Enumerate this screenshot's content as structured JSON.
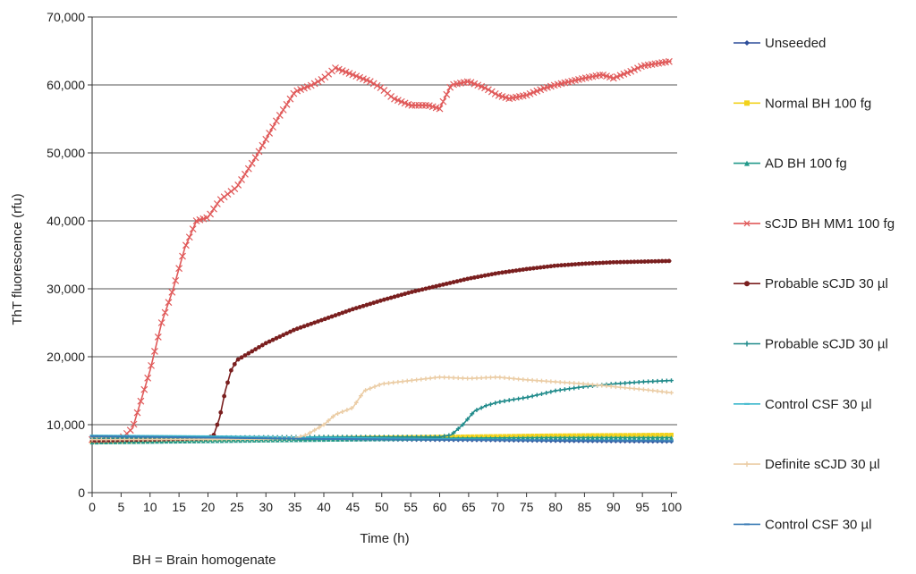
{
  "chart_data": {
    "type": "line",
    "xlabel": "Time (h)",
    "ylabel": "ThT fluorescence (rfu)",
    "xlim": [
      0,
      101
    ],
    "ylim": [
      0,
      70000
    ],
    "x_ticks": [
      "0",
      "5",
      "10",
      "15",
      "20",
      "25",
      "30",
      "35",
      "40",
      "45",
      "50",
      "55",
      "60",
      "65",
      "70",
      "75",
      "80",
      "85",
      "90",
      "95",
      "100"
    ],
    "y_ticks": [
      "0",
      "10,000",
      "20,000",
      "30,000",
      "40,000",
      "50,000",
      "60,000",
      "70,000"
    ],
    "grid": "horizontal",
    "legend_position": "right",
    "series": [
      {
        "name": "Unseeded",
        "color": "#2e4f9a",
        "marker": "diamond",
        "points": [
          [
            0,
            7600
          ],
          [
            10,
            7700
          ],
          [
            20,
            7800
          ],
          [
            30,
            7800
          ],
          [
            40,
            7800
          ],
          [
            50,
            7800
          ],
          [
            60,
            7750
          ],
          [
            70,
            7700
          ],
          [
            80,
            7600
          ],
          [
            90,
            7550
          ],
          [
            100,
            7500
          ]
        ]
      },
      {
        "name": "Normal BH 100 fg",
        "color": "#f2d21c",
        "marker": "square",
        "points": [
          [
            0,
            7500
          ],
          [
            10,
            7650
          ],
          [
            20,
            7800
          ],
          [
            30,
            7900
          ],
          [
            40,
            8000
          ],
          [
            50,
            8100
          ],
          [
            60,
            8200
          ],
          [
            70,
            8300
          ],
          [
            80,
            8400
          ],
          [
            90,
            8450
          ],
          [
            100,
            8500
          ]
        ]
      },
      {
        "name": "AD BH 100 fg",
        "color": "#22998a",
        "marker": "triangle",
        "points": [
          [
            0,
            7400
          ],
          [
            10,
            7500
          ],
          [
            20,
            7600
          ],
          [
            30,
            7700
          ],
          [
            40,
            7800
          ],
          [
            50,
            7900
          ],
          [
            60,
            8000
          ],
          [
            70,
            8050
          ],
          [
            80,
            8100
          ],
          [
            90,
            8100
          ],
          [
            100,
            8100
          ]
        ]
      },
      {
        "name": "sCJD BH MM1 100 fg",
        "color": "#e05a5a",
        "marker": "x",
        "points": [
          [
            0,
            7800
          ],
          [
            5,
            7900
          ],
          [
            7,
            9500
          ],
          [
            10,
            18000
          ],
          [
            12,
            25000
          ],
          [
            14,
            30000
          ],
          [
            16,
            36000
          ],
          [
            18,
            40000
          ],
          [
            20,
            40500
          ],
          [
            22,
            43000
          ],
          [
            25,
            45000
          ],
          [
            28,
            49000
          ],
          [
            30,
            52000
          ],
          [
            32,
            55000
          ],
          [
            35,
            59000
          ],
          [
            38,
            60000
          ],
          [
            40,
            61000
          ],
          [
            42,
            62500
          ],
          [
            45,
            61500
          ],
          [
            48,
            60500
          ],
          [
            50,
            59500
          ],
          [
            52,
            58000
          ],
          [
            55,
            57000
          ],
          [
            58,
            57000
          ],
          [
            60,
            56500
          ],
          [
            62,
            60000
          ],
          [
            65,
            60500
          ],
          [
            68,
            59500
          ],
          [
            70,
            58500
          ],
          [
            72,
            58000
          ],
          [
            75,
            58500
          ],
          [
            78,
            59500
          ],
          [
            80,
            60000
          ],
          [
            85,
            61000
          ],
          [
            88,
            61500
          ],
          [
            90,
            61000
          ],
          [
            93,
            62000
          ],
          [
            95,
            62800
          ],
          [
            100,
            63500
          ]
        ]
      },
      {
        "name": "Probable sCJD 30 µl",
        "color": "#7a1f1f",
        "marker": "circle",
        "points": [
          [
            0,
            7700
          ],
          [
            10,
            7800
          ],
          [
            20,
            8000
          ],
          [
            21,
            8500
          ],
          [
            22,
            11000
          ],
          [
            23,
            15000
          ],
          [
            24,
            18000
          ],
          [
            25,
            19500
          ],
          [
            27,
            20500
          ],
          [
            30,
            22000
          ],
          [
            35,
            24000
          ],
          [
            40,
            25500
          ],
          [
            45,
            27000
          ],
          [
            50,
            28300
          ],
          [
            55,
            29500
          ],
          [
            60,
            30500
          ],
          [
            65,
            31500
          ],
          [
            70,
            32300
          ],
          [
            75,
            32900
          ],
          [
            80,
            33400
          ],
          [
            85,
            33700
          ],
          [
            90,
            33900
          ],
          [
            95,
            34000
          ],
          [
            100,
            34100
          ]
        ]
      },
      {
        "name": "Probable sCJD 30 µl",
        "color": "#1f8a8a",
        "marker": "plus",
        "points": [
          [
            0,
            8000
          ],
          [
            20,
            8100
          ],
          [
            40,
            8200
          ],
          [
            60,
            8200
          ],
          [
            62,
            8500
          ],
          [
            64,
            10000
          ],
          [
            66,
            12000
          ],
          [
            68,
            12800
          ],
          [
            70,
            13300
          ],
          [
            72,
            13600
          ],
          [
            75,
            14000
          ],
          [
            78,
            14600
          ],
          [
            80,
            15000
          ],
          [
            85,
            15600
          ],
          [
            90,
            16000
          ],
          [
            95,
            16300
          ],
          [
            100,
            16500
          ]
        ]
      },
      {
        "name": "Control CSF 30 µl",
        "color": "#38b6cc",
        "marker": "dash",
        "points": [
          [
            0,
            8400
          ],
          [
            10,
            8350
          ],
          [
            20,
            8300
          ],
          [
            30,
            8200
          ],
          [
            40,
            8100
          ],
          [
            50,
            8000
          ],
          [
            60,
            7900
          ],
          [
            70,
            7800
          ],
          [
            80,
            7700
          ],
          [
            90,
            7700
          ],
          [
            100,
            7600
          ]
        ]
      },
      {
        "name": "Definite sCJD 30 µl",
        "color": "#ebcda6",
        "marker": "plus",
        "points": [
          [
            0,
            7800
          ],
          [
            20,
            7850
          ],
          [
            30,
            7900
          ],
          [
            35,
            8000
          ],
          [
            37,
            8500
          ],
          [
            40,
            10000
          ],
          [
            42,
            11500
          ],
          [
            45,
            12500
          ],
          [
            47,
            15000
          ],
          [
            50,
            16000
          ],
          [
            55,
            16500
          ],
          [
            60,
            17000
          ],
          [
            65,
            16800
          ],
          [
            70,
            17000
          ],
          [
            75,
            16600
          ],
          [
            80,
            16300
          ],
          [
            85,
            16000
          ],
          [
            90,
            15600
          ],
          [
            95,
            15200
          ],
          [
            100,
            14700
          ]
        ]
      },
      {
        "name": "Control CSF 30 µl",
        "color": "#3a7bb5",
        "marker": "dash",
        "points": [
          [
            0,
            8300
          ],
          [
            10,
            8200
          ],
          [
            20,
            8100
          ],
          [
            30,
            8000
          ],
          [
            40,
            7900
          ],
          [
            50,
            7850
          ],
          [
            60,
            7800
          ],
          [
            70,
            7750
          ],
          [
            80,
            7700
          ],
          [
            90,
            7650
          ],
          [
            100,
            7600
          ]
        ]
      }
    ]
  },
  "footnote": "BH = Brain homogenate"
}
